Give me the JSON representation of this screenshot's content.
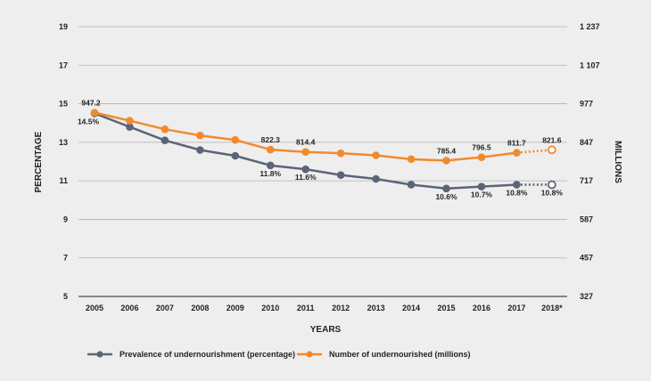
{
  "chart_data": {
    "type": "line",
    "xlabel": "YEARS",
    "ylabel_left": "PERCENTAGE",
    "ylabel_right": "MILLIONS",
    "x": [
      "2005",
      "2006",
      "2007",
      "2008",
      "2009",
      "2010",
      "2011",
      "2012",
      "2013",
      "2014",
      "2015",
      "2016",
      "2017",
      "2018*"
    ],
    "ylim_left": [
      5,
      19
    ],
    "yticks_left": [
      5,
      7,
      9,
      11,
      13,
      15,
      17,
      19
    ],
    "ylim_right": [
      327,
      1237
    ],
    "yticks_right": [
      "327",
      "457",
      "587",
      "717",
      "847",
      "977",
      "1 107",
      "1 237"
    ],
    "grid": "horizontal",
    "legend_position": "bottom",
    "series": [
      {
        "name": "Prevalence of undernourishment (percentage)",
        "axis": "left",
        "color": "#5b6478",
        "values": [
          14.5,
          13.8,
          13.1,
          12.6,
          12.3,
          11.8,
          11.6,
          11.3,
          11.1,
          10.8,
          10.6,
          10.7,
          10.8,
          10.8
        ],
        "labels": [
          "14.5%",
          null,
          null,
          null,
          null,
          "11.8%",
          "11.6%",
          null,
          null,
          null,
          "10.6%",
          "10.7%",
          "10.8%",
          "10.8%"
        ],
        "projected_from_index": 12
      },
      {
        "name": "Number of undernourished (millions)",
        "axis": "right",
        "color": "#ef8b2c",
        "values": [
          947.2,
          920,
          891,
          870,
          855,
          822.3,
          814.4,
          810,
          803,
          790,
          785.4,
          796.5,
          811.7,
          821.6
        ],
        "labels": [
          "947.2",
          null,
          null,
          null,
          null,
          "822.3",
          "814.4",
          null,
          null,
          null,
          "785.4",
          "796.5",
          "811.7",
          "821.6"
        ],
        "projected_from_index": 12
      }
    ]
  }
}
